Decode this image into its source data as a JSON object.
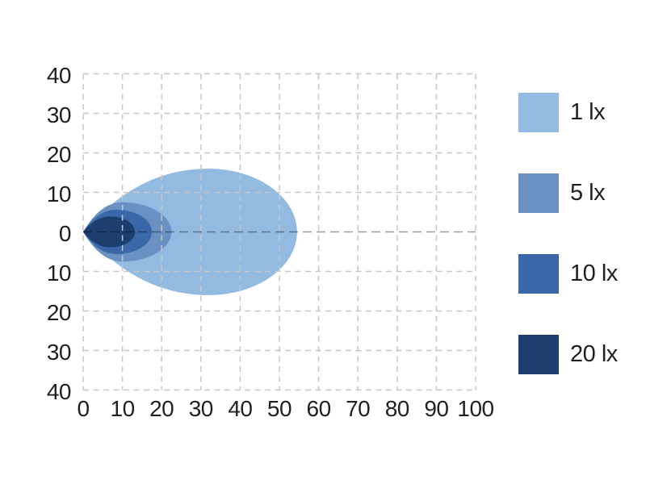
{
  "chart_data": {
    "type": "contour",
    "subtype": "isolux-beam-pattern",
    "title": "",
    "xlabel": "",
    "ylabel": "",
    "x_range": [
      0,
      100
    ],
    "y_range": [
      -40,
      40
    ],
    "x_tick_values": [
      0,
      10,
      20,
      30,
      40,
      50,
      60,
      70,
      80,
      90,
      100
    ],
    "x_tick_labels": [
      "0",
      "10",
      "20",
      "30",
      "40",
      "50",
      "60",
      "70",
      "80",
      "90",
      "100"
    ],
    "y_tick_values": [
      40,
      30,
      20,
      10,
      0,
      -10,
      -20,
      -30,
      -40
    ],
    "y_tick_labels": [
      "40",
      "30",
      "20",
      "10",
      "0",
      "10",
      "20",
      "30",
      "40"
    ],
    "grid": {
      "visible": true,
      "style": "dashed",
      "line_color": "#c7c7c7",
      "zero_line_color": "rgba(0,0,0,0.38)"
    },
    "contours": [
      {
        "label": "1 lx",
        "color": "#93BAE1",
        "origin": [
          0,
          0
        ],
        "max_x": 54.5,
        "peak_x": 32,
        "half_height": 16
      },
      {
        "label": "5 lx",
        "color": "#6A91C3",
        "origin": [
          0,
          0
        ],
        "max_x": 22.5,
        "peak_x": 10,
        "half_height": 7.5
      },
      {
        "label": "10 lx",
        "color": "#3A67A7",
        "origin": [
          0,
          0
        ],
        "max_x": 17.5,
        "peak_x": 8.5,
        "half_height": 5.6
      },
      {
        "label": "20 lx",
        "color": "#1C3E6F",
        "origin": [
          0,
          0
        ],
        "max_x": 13.2,
        "peak_x": 7,
        "half_height": 3.9
      }
    ],
    "legend": {
      "position": "right",
      "entries": [
        {
          "label": "1 lx",
          "color": "#93BAE1"
        },
        {
          "label": "5 lx",
          "color": "#6A91C3"
        },
        {
          "label": "10 lx",
          "color": "#3A67A7"
        },
        {
          "label": "20 lx",
          "color": "#1C3E6F"
        }
      ]
    },
    "text_color": "#231F20"
  }
}
